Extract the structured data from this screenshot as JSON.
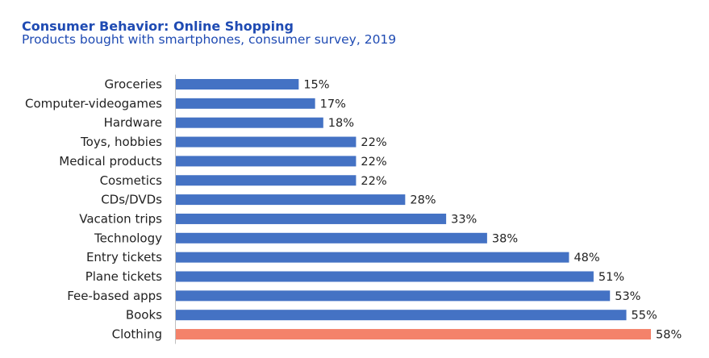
{
  "chart_data": {
    "type": "bar",
    "orientation": "horizontal",
    "title": "Consumer Behavior: Online Shopping",
    "subtitle": "Products bought with smartphones, consumer survey, 2019",
    "categories": [
      "Groceries",
      "Computer-videogames",
      "Hardware",
      "Toys, hobbies",
      "Medical products",
      "Cosmetics",
      "CDs/DVDs",
      "Vacation trips",
      "Technology",
      "Entry tickets",
      "Plane tickets",
      "Fee-based apps",
      "Books",
      "Clothing"
    ],
    "values": [
      15,
      17,
      18,
      22,
      22,
      22,
      28,
      33,
      38,
      48,
      51,
      53,
      55,
      58
    ],
    "value_labels": [
      "15%",
      "17%",
      "18%",
      "22%",
      "22%",
      "22%",
      "28%",
      "33%",
      "38%",
      "48%",
      "51%",
      "53%",
      "55%",
      "58%"
    ],
    "unit": "%",
    "xlim": [
      0,
      58
    ],
    "highlight_category": "Clothing",
    "xlabel": "",
    "ylabel": "",
    "grid": false,
    "colors": {
      "bar": "#4472c4",
      "highlight": "#f4826a",
      "title": "#1f4bb3",
      "axis": "#bfbfbf",
      "text": "#222222"
    }
  }
}
